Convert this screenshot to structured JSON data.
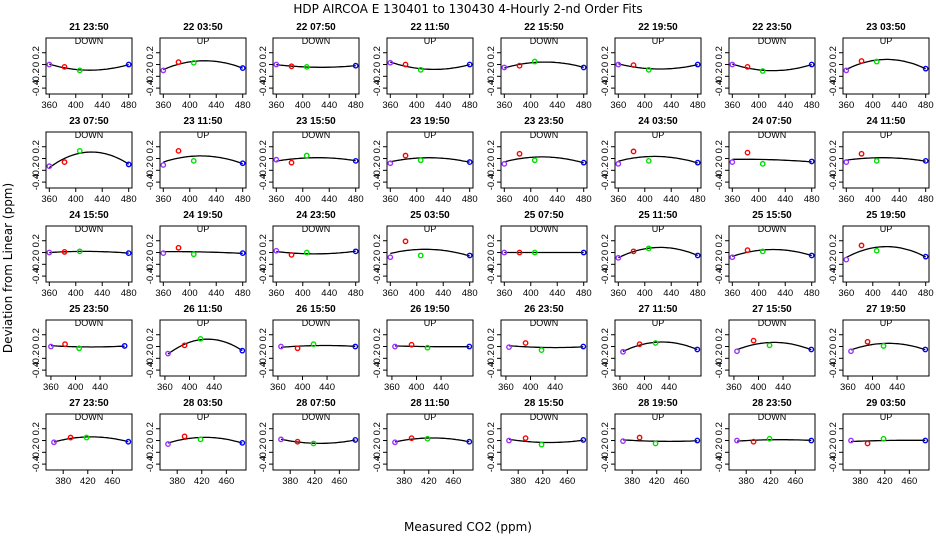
{
  "title": "HDP   AIRCOA E   130401 to 130430   4-Hourly 2-nd Order Fits",
  "chart_data": {
    "type": "scatter",
    "title": "HDP   AIRCOA E   130401 to 130430   4-Hourly 2-nd Order Fits",
    "xlabel": "Measured CO2 (ppm)",
    "ylabel": "Deviation from Linear (ppm)",
    "ylim": [
      -0.5,
      0.45
    ],
    "y_ticks": [
      -0.4,
      -0.2,
      0,
      0.2
    ],
    "y_tick_labels": [
      "-0.4",
      "-0.2",
      "0",
      "0.2"
    ],
    "x_ticks_rows": [
      [
        360,
        400,
        440,
        480
      ],
      [
        360,
        400,
        440,
        480
      ],
      [
        360,
        400,
        440,
        480
      ],
      [
        360,
        400,
        440
      ],
      [
        380,
        420,
        460
      ]
    ],
    "x_tick_labels_rows": [
      [
        "360",
        "400",
        "440",
        "480"
      ],
      [
        "360",
        "400",
        "440",
        "480"
      ],
      [
        "360",
        "400",
        "440",
        "480"
      ],
      [
        "360",
        "400",
        "440"
      ],
      [
        "380",
        "420",
        "460"
      ]
    ],
    "xlim_rows": [
      [
        355,
        485
      ],
      [
        355,
        485
      ],
      [
        355,
        485
      ],
      [
        352,
        492
      ],
      [
        352,
        492
      ]
    ],
    "series_colors": {
      "standard1": "#9933ff",
      "standard2": "#ff0000",
      "standard3": "#00dd00",
      "standard4": "#0000ff"
    },
    "panels": [
      {
        "title": "21 23:50",
        "dir": "DOWN",
        "x": [
          360,
          383,
          406,
          480
        ],
        "y": [
          0.0,
          -0.04,
          -0.1,
          0.0
        ]
      },
      {
        "title": "22 03:50",
        "dir": "UP",
        "x": [
          360,
          383,
          406,
          480
        ],
        "y": [
          -0.1,
          0.04,
          0.03,
          -0.06
        ]
      },
      {
        "title": "22 07:50",
        "dir": "DOWN",
        "x": [
          360,
          383,
          406,
          480
        ],
        "y": [
          0.0,
          -0.03,
          -0.04,
          -0.02
        ]
      },
      {
        "title": "22 11:50",
        "dir": "UP",
        "x": [
          360,
          383,
          406,
          480
        ],
        "y": [
          0.03,
          0.0,
          -0.09,
          0.0
        ]
      },
      {
        "title": "22 15:50",
        "dir": "DOWN",
        "x": [
          360,
          383,
          406,
          480
        ],
        "y": [
          -0.05,
          -0.02,
          0.05,
          -0.05
        ]
      },
      {
        "title": "22 19:50",
        "dir": "UP",
        "x": [
          360,
          383,
          406,
          480
        ],
        "y": [
          0.0,
          -0.01,
          -0.09,
          0.0
        ]
      },
      {
        "title": "22 23:50",
        "dir": "DOWN",
        "x": [
          360,
          383,
          406,
          480
        ],
        "y": [
          0.0,
          -0.04,
          -0.11,
          0.0
        ]
      },
      {
        "title": "23 03:50",
        "dir": "UP",
        "x": [
          360,
          383,
          406,
          480
        ],
        "y": [
          -0.1,
          0.06,
          0.05,
          -0.07
        ]
      },
      {
        "title": "23 07:50",
        "dir": "DOWN",
        "x": [
          360,
          383,
          406,
          480
        ],
        "y": [
          -0.13,
          -0.06,
          0.13,
          -0.1
        ]
      },
      {
        "title": "23 11:50",
        "dir": "UP",
        "x": [
          360,
          383,
          406,
          480
        ],
        "y": [
          -0.11,
          0.13,
          -0.04,
          -0.08
        ]
      },
      {
        "title": "23 15:50",
        "dir": "DOWN",
        "x": [
          360,
          383,
          406,
          480
        ],
        "y": [
          -0.02,
          -0.07,
          0.05,
          -0.04
        ]
      },
      {
        "title": "23 19:50",
        "dir": "UP",
        "x": [
          360,
          383,
          406,
          480
        ],
        "y": [
          -0.08,
          0.05,
          -0.03,
          -0.06
        ]
      },
      {
        "title": "23 23:50",
        "dir": "DOWN",
        "x": [
          360,
          383,
          406,
          480
        ],
        "y": [
          -0.09,
          0.08,
          -0.03,
          -0.07
        ]
      },
      {
        "title": "24 03:50",
        "dir": "UP",
        "x": [
          360,
          383,
          406,
          480
        ],
        "y": [
          -0.09,
          0.12,
          -0.04,
          -0.07
        ]
      },
      {
        "title": "24 07:50",
        "dir": "DOWN",
        "x": [
          360,
          383,
          406,
          480
        ],
        "y": [
          -0.06,
          0.1,
          -0.09,
          -0.05
        ]
      },
      {
        "title": "24 11:50",
        "dir": "UP",
        "x": [
          360,
          383,
          406,
          480
        ],
        "y": [
          -0.06,
          0.08,
          -0.04,
          -0.04
        ]
      },
      {
        "title": "24 15:50",
        "dir": "DOWN",
        "x": [
          360,
          383,
          406,
          480
        ],
        "y": [
          0.0,
          0.01,
          0.02,
          -0.01
        ]
      },
      {
        "title": "24 19:50",
        "dir": "UP",
        "x": [
          360,
          383,
          406,
          480
        ],
        "y": [
          -0.01,
          0.08,
          -0.03,
          -0.01
        ]
      },
      {
        "title": "24 23:50",
        "dir": "DOWN",
        "x": [
          360,
          383,
          406,
          480
        ],
        "y": [
          0.03,
          -0.04,
          0.0,
          0.02
        ]
      },
      {
        "title": "25 03:50",
        "dir": "UP",
        "x": [
          360,
          383,
          406,
          480
        ],
        "y": [
          -0.08,
          0.19,
          -0.05,
          -0.05
        ]
      },
      {
        "title": "25 07:50",
        "dir": "DOWN",
        "x": [
          360,
          383,
          406,
          480
        ],
        "y": [
          0.0,
          0.0,
          0.0,
          0.0
        ]
      },
      {
        "title": "25 11:50",
        "dir": "UP",
        "x": [
          360,
          383,
          406,
          480
        ],
        "y": [
          -0.09,
          0.02,
          0.07,
          -0.05
        ]
      },
      {
        "title": "25 15:50",
        "dir": "DOWN",
        "x": [
          360,
          383,
          406,
          480
        ],
        "y": [
          -0.08,
          0.04,
          0.02,
          -0.05
        ]
      },
      {
        "title": "25 19:50",
        "dir": "UP",
        "x": [
          360,
          383,
          406,
          480
        ],
        "y": [
          -0.12,
          0.12,
          0.03,
          -0.07
        ]
      },
      {
        "title": "25 23:50",
        "dir": "DOWN",
        "x": [
          360,
          383,
          406,
          480
        ],
        "y": [
          0.0,
          0.04,
          -0.03,
          0.01
        ]
      },
      {
        "title": "26 11:50",
        "dir": "UP",
        "x": [
          365,
          392,
          418,
          486
        ],
        "y": [
          -0.12,
          0.02,
          0.13,
          -0.07
        ]
      },
      {
        "title": "26 15:50",
        "dir": "DOWN",
        "x": [
          365,
          392,
          418,
          486
        ],
        "y": [
          0.0,
          -0.03,
          0.04,
          0.0
        ]
      },
      {
        "title": "26 19:50",
        "dir": "UP",
        "x": [
          365,
          392,
          418,
          486
        ],
        "y": [
          0.0,
          0.03,
          -0.02,
          0.0
        ]
      },
      {
        "title": "26 23:50",
        "dir": "DOWN",
        "x": [
          365,
          392,
          418,
          486
        ],
        "y": [
          -0.01,
          0.06,
          -0.06,
          0.0
        ]
      },
      {
        "title": "27 11:50",
        "dir": "UP",
        "x": [
          365,
          392,
          418,
          486
        ],
        "y": [
          -0.09,
          0.04,
          0.06,
          -0.05
        ]
      },
      {
        "title": "27 15:50",
        "dir": "DOWN",
        "x": [
          365,
          392,
          418,
          486
        ],
        "y": [
          -0.08,
          0.1,
          0.02,
          -0.05
        ]
      },
      {
        "title": "27 19:50",
        "dir": "UP",
        "x": [
          365,
          392,
          418,
          486
        ],
        "y": [
          -0.08,
          0.08,
          0.01,
          -0.05
        ]
      },
      {
        "title": "27 23:50",
        "dir": "DOWN",
        "x": [
          365,
          392,
          418,
          486
        ],
        "y": [
          -0.03,
          0.05,
          0.05,
          -0.02
        ]
      },
      {
        "title": "28 03:50",
        "dir": "UP",
        "x": [
          365,
          392,
          418,
          486
        ],
        "y": [
          -0.06,
          0.07,
          0.02,
          -0.04
        ]
      },
      {
        "title": "28 07:50",
        "dir": "DOWN",
        "x": [
          365,
          392,
          418,
          486
        ],
        "y": [
          0.02,
          -0.02,
          -0.05,
          0.01
        ]
      },
      {
        "title": "28 11:50",
        "dir": "UP",
        "x": [
          365,
          392,
          418,
          486
        ],
        "y": [
          -0.03,
          0.04,
          0.03,
          -0.02
        ]
      },
      {
        "title": "28 15:50",
        "dir": "DOWN",
        "x": [
          365,
          392,
          418,
          486
        ],
        "y": [
          0.0,
          0.04,
          -0.07,
          0.01
        ]
      },
      {
        "title": "28 19:50",
        "dir": "UP",
        "x": [
          365,
          392,
          418,
          486
        ],
        "y": [
          -0.01,
          0.05,
          -0.05,
          0.0
        ]
      },
      {
        "title": "28 23:50",
        "dir": "DOWN",
        "x": [
          365,
          392,
          418,
          486
        ],
        "y": [
          0.0,
          -0.02,
          0.03,
          0.0
        ]
      },
      {
        "title": "29 03:50",
        "dir": "UP",
        "x": [
          365,
          392,
          418,
          486
        ],
        "y": [
          0.0,
          -0.05,
          0.03,
          0.0
        ]
      }
    ]
  }
}
